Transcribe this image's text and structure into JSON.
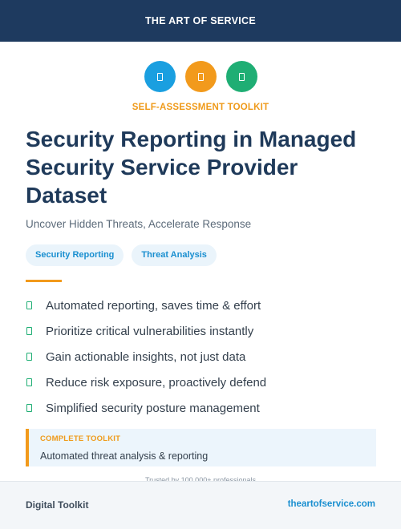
{
  "header": {
    "brand": "THE ART OF SERVICE"
  },
  "icons": [
    {
      "name": "document-icon",
      "color": "#1a9fe0"
    },
    {
      "name": "document-icon",
      "color": "#f29a1c"
    },
    {
      "name": "document-icon",
      "color": "#1fae74"
    }
  ],
  "kicker": "SELF-ASSESSMENT TOOLKIT",
  "title": "Security Reporting in Managed Security Service Provider Dataset",
  "subtitle": "Uncover Hidden Threats, Accelerate Response",
  "tags": [
    "Security Reporting",
    "Threat Analysis"
  ],
  "features": [
    "Automated reporting, saves time & effort",
    "Prioritize critical vulnerabilities instantly",
    "Gain actionable insights, not just data",
    "Reduce risk exposure, proactively defend",
    "Simplified security posture management"
  ],
  "callout": {
    "kicker": "COMPLETE TOOLKIT",
    "text": "Automated threat analysis & reporting"
  },
  "trusted": "Trusted by 100,000+ professionals",
  "footer": {
    "left": "Digital Toolkit",
    "right": "theartofservice.com"
  },
  "colors": {
    "navy": "#1e3a5f",
    "orange": "#f29a1c",
    "blue": "#1a9fe0",
    "green": "#1fae74"
  }
}
